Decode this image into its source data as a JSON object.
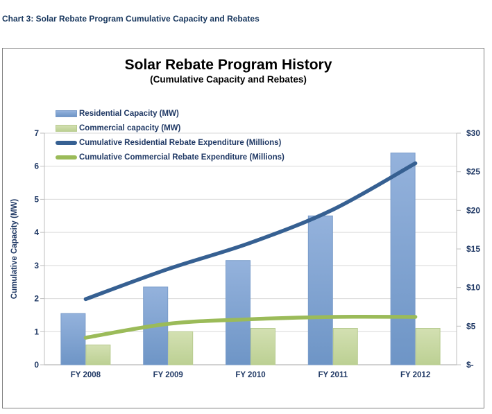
{
  "page": {
    "header": "Chart 3: Solar Rebate Program Cumulative Capacity and Rebates"
  },
  "chart_data": {
    "type": "combo-bar-line",
    "title": "Solar Rebate Program History",
    "subtitle": "(Cumulative Capacity and Rebates)",
    "categories": [
      "FY 2008",
      "FY 2009",
      "FY 2010",
      "FY 2011",
      "FY 2012"
    ],
    "series": [
      {
        "name": "Residential Capacity (MW)",
        "kind": "bar",
        "axis": "left",
        "values": [
          1.55,
          2.35,
          3.15,
          4.5,
          6.4
        ],
        "color": "#6e95c6",
        "color_light": "#94b2dc",
        "stroke": "#7a9cca"
      },
      {
        "name": "Commercial capacity (MW)",
        "kind": "bar",
        "axis": "left",
        "values": [
          0.6,
          1.0,
          1.1,
          1.1,
          1.1
        ],
        "color": "#bcd093",
        "color_light": "#d3e0b2",
        "stroke": "#b8cb90"
      },
      {
        "name": "Cumulative Residential Rebate Expenditure (Millions)",
        "kind": "line",
        "axis": "right",
        "values": [
          8.5,
          12.4,
          15.8,
          20.1,
          26.1
        ],
        "color": "#366092"
      },
      {
        "name": "Cumulative Commercial Rebate Expenditure (Millions)",
        "kind": "line",
        "axis": "right",
        "values": [
          3.5,
          5.3,
          5.9,
          6.2,
          6.2
        ],
        "color": "#9bbb59"
      }
    ],
    "left_axis": {
      "title": "Cumulative Capacity (MW)",
      "min": 0,
      "max": 7,
      "step": 1,
      "tick_labels": [
        "0",
        "1",
        "2",
        "3",
        "4",
        "5",
        "6",
        "7"
      ]
    },
    "right_axis": {
      "min": 0,
      "max": 30,
      "step": 5,
      "tick_labels": [
        "$-",
        "$5",
        "$10",
        "$15",
        "$20",
        "$25",
        "$30"
      ]
    },
    "x_axis": {
      "tick_labels": [
        "FY 2008",
        "FY 2009",
        "FY 2010",
        "FY 2011",
        "FY 2012"
      ]
    },
    "legend_position": "top-left",
    "grid": "horizontal",
    "colors": {
      "grid": "#d9d9d9",
      "axis_line": "#bfbfbf",
      "baseline": "#a6a6a6",
      "tick_text": "#1f3864",
      "title_text": "#000000",
      "header_text": "#17365d",
      "frame_border": "#808080"
    }
  }
}
